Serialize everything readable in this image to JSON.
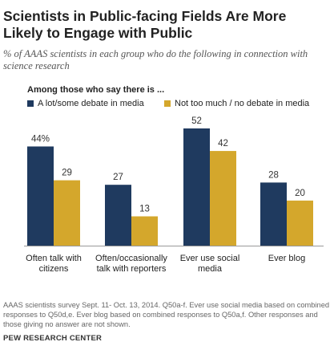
{
  "title": "Scientists in Public-facing Fields Are More Likely to Engage with Public",
  "subtitle": "% of AAAS scientists in each group who do the following in connection with science research",
  "legend_title": "Among those who say there is ...",
  "note": "AAAS scientists survey Sept. 11- Oct. 13, 2014. Q50a-f. Ever use social media based on combined responses to Q50d,e. Ever blog based on combined responses to Q50a,f. Other responses and those giving no answer are not shown.",
  "source": "PEW RESEARCH CENTER",
  "chart_data": {
    "type": "bar",
    "categories": [
      [
        "Often talk with",
        "citizens"
      ],
      [
        "Often/occasionally",
        "talk with reporters"
      ],
      [
        "Ever use social",
        "media"
      ],
      [
        "Ever blog"
      ]
    ],
    "series": [
      {
        "name": "A lot/some debate in media",
        "color": "#1f3a5f",
        "values": [
          44,
          27,
          52,
          28
        ],
        "labels": [
          "44%",
          "27",
          "52",
          "28"
        ]
      },
      {
        "name": "Not too much / no debate in media",
        "color": "#d4a72c",
        "values": [
          29,
          13,
          42,
          20
        ],
        "labels": [
          "29",
          "13",
          "42",
          "20"
        ]
      }
    ],
    "ylim": [
      0,
      52
    ],
    "grid": false,
    "legend_position": "top-left"
  }
}
